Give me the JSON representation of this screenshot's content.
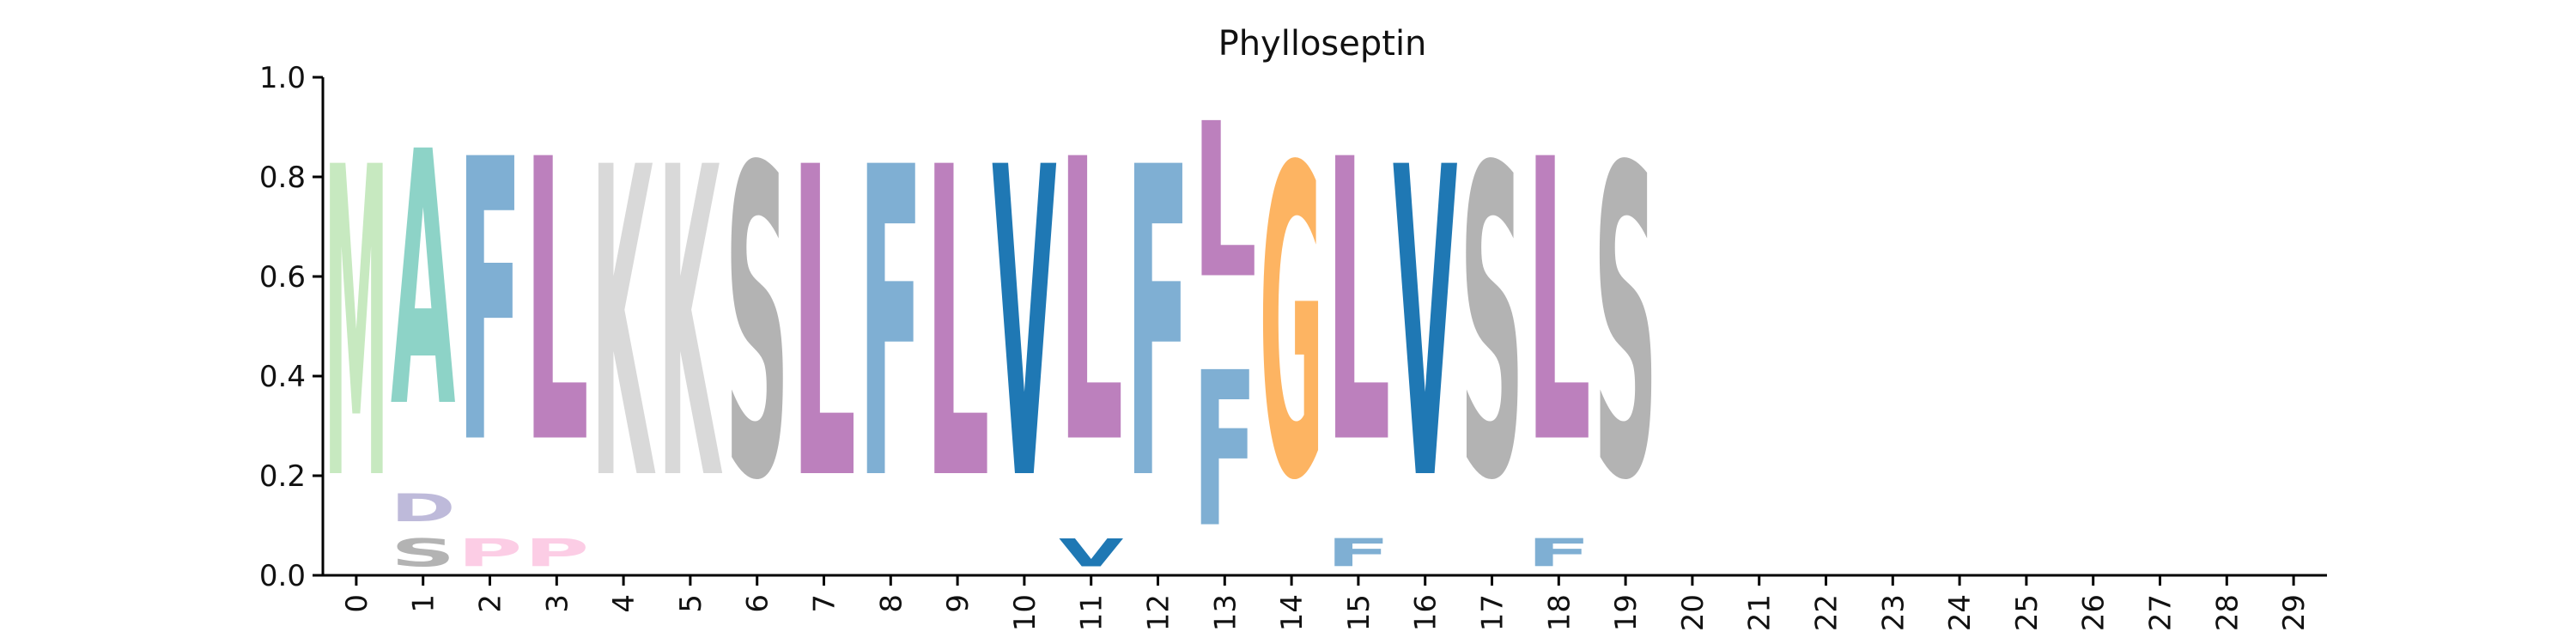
{
  "chart_data": {
    "type": "sequence-logo",
    "title": "Phylloseptin",
    "xlabel": "",
    "ylabel": "",
    "ylim": [
      0,
      1
    ],
    "yticks": [
      0.0,
      0.2,
      0.4,
      0.6,
      0.8,
      1.0
    ],
    "ytick_labels": [
      "0.0",
      "0.2",
      "0.4",
      "0.6",
      "0.8",
      "1.0"
    ],
    "x_positions": [
      0,
      1,
      2,
      3,
      4,
      5,
      6,
      7,
      8,
      9,
      10,
      11,
      12,
      13,
      14,
      15,
      16,
      17,
      18,
      19,
      20,
      21,
      22,
      23,
      24,
      25,
      26,
      27,
      28,
      29
    ],
    "x_tick_labels": [
      "0",
      "1",
      "2",
      "3",
      "4",
      "5",
      "6",
      "7",
      "8",
      "9",
      "10",
      "11",
      "12",
      "13",
      "14",
      "15",
      "16",
      "17",
      "18",
      "19",
      "20",
      "21",
      "22",
      "23",
      "24",
      "25",
      "26",
      "27",
      "28",
      "29"
    ],
    "grid": false,
    "colors": {
      "M": "#c7e9c0",
      "A": "#8dd3c7",
      "F": "#7fafd3",
      "L": "#bc80bd",
      "K": "#d9d9d9",
      "S": "#b3b3b3",
      "V": "#1f78b4",
      "G": "#fdb462",
      "D": "#bebada",
      "P": "#fccde5"
    },
    "columns": [
      {
        "position": 0,
        "letters": [
          {
            "letter": "M",
            "freq": 1.0
          }
        ]
      },
      {
        "position": 1,
        "letters": [
          {
            "letter": "S",
            "freq": 0.09
          },
          {
            "letter": "D",
            "freq": 0.09
          },
          {
            "letter": "A",
            "freq": 0.82
          }
        ]
      },
      {
        "position": 2,
        "letters": [
          {
            "letter": "P",
            "freq": 0.09
          },
          {
            "letter": "F",
            "freq": 0.91
          }
        ]
      },
      {
        "position": 3,
        "letters": [
          {
            "letter": "P",
            "freq": 0.09
          },
          {
            "letter": "L",
            "freq": 0.91
          }
        ]
      },
      {
        "position": 4,
        "letters": [
          {
            "letter": "K",
            "freq": 1.0
          }
        ]
      },
      {
        "position": 5,
        "letters": [
          {
            "letter": "K",
            "freq": 1.0
          }
        ]
      },
      {
        "position": 6,
        "letters": [
          {
            "letter": "S",
            "freq": 1.0
          }
        ]
      },
      {
        "position": 7,
        "letters": [
          {
            "letter": "L",
            "freq": 1.0
          }
        ]
      },
      {
        "position": 8,
        "letters": [
          {
            "letter": "F",
            "freq": 1.0
          }
        ]
      },
      {
        "position": 9,
        "letters": [
          {
            "letter": "L",
            "freq": 1.0
          }
        ]
      },
      {
        "position": 10,
        "letters": [
          {
            "letter": "V",
            "freq": 1.0
          }
        ]
      },
      {
        "position": 11,
        "letters": [
          {
            "letter": "V",
            "freq": 0.09
          },
          {
            "letter": "L",
            "freq": 0.91
          }
        ]
      },
      {
        "position": 12,
        "letters": [
          {
            "letter": "F",
            "freq": 1.0
          }
        ]
      },
      {
        "position": 13,
        "letters": [
          {
            "letter": "F",
            "freq": 0.5
          },
          {
            "letter": "L",
            "freq": 0.5
          }
        ]
      },
      {
        "position": 14,
        "letters": [
          {
            "letter": "G",
            "freq": 1.0
          }
        ]
      },
      {
        "position": 15,
        "letters": [
          {
            "letter": "F",
            "freq": 0.09
          },
          {
            "letter": "L",
            "freq": 0.91
          }
        ]
      },
      {
        "position": 16,
        "letters": [
          {
            "letter": "V",
            "freq": 1.0
          }
        ]
      },
      {
        "position": 17,
        "letters": [
          {
            "letter": "S",
            "freq": 1.0
          }
        ]
      },
      {
        "position": 18,
        "letters": [
          {
            "letter": "F",
            "freq": 0.09
          },
          {
            "letter": "L",
            "freq": 0.91
          }
        ]
      },
      {
        "position": 19,
        "letters": [
          {
            "letter": "S",
            "freq": 1.0
          }
        ]
      }
    ]
  }
}
